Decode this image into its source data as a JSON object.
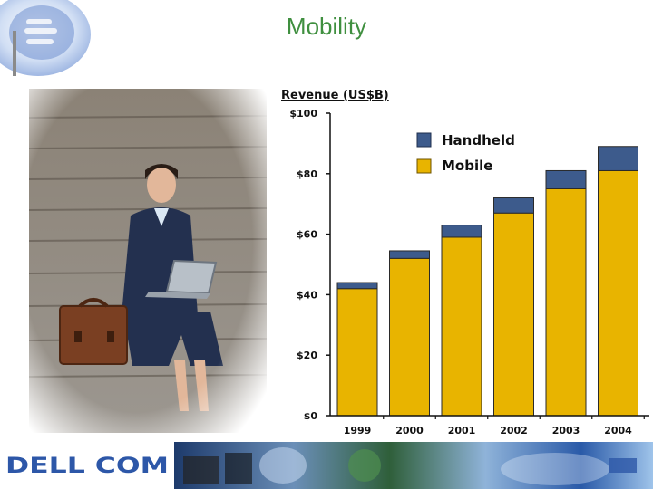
{
  "slide": {
    "title": "Mobility",
    "footer_logo_text": "DELL COM",
    "colors": {
      "title": "#3f8f3f",
      "mobile": "#e8b400",
      "handheld": "#3d5b8c"
    }
  },
  "chart_data": {
    "type": "bar",
    "stacked": true,
    "title": "Revenue (US$B)",
    "categories": [
      "1999",
      "2000",
      "2001",
      "2002",
      "2003",
      "2004"
    ],
    "series": [
      {
        "name": "Mobile",
        "color": "#e8b400",
        "values": [
          42,
          52,
          59,
          67,
          75,
          81
        ]
      },
      {
        "name": "Handheld",
        "color": "#3d5b8c",
        "values": [
          2,
          2.5,
          4,
          5,
          6,
          8
        ]
      }
    ],
    "ylim": [
      0,
      100
    ],
    "yticks": [
      0,
      20,
      40,
      60,
      80,
      100
    ],
    "ytick_labels": [
      "$0",
      "$20",
      "$40",
      "$60",
      "$80",
      "$100"
    ],
    "legend": [
      "Handheld",
      "Mobile"
    ],
    "legend_position": "top-right",
    "grid": false
  }
}
